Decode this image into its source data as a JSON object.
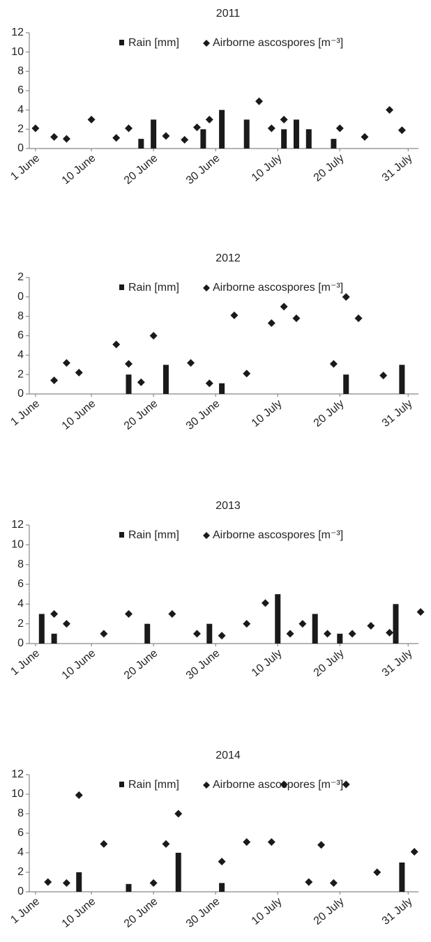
{
  "chart_data": [
    {
      "type": "combo",
      "title": "2011",
      "xlim": [
        0,
        64
      ],
      "ylim": [
        0,
        12
      ],
      "yticks": [
        0,
        2,
        4,
        6,
        8,
        10,
        12
      ],
      "xticks": [
        {
          "value": 1,
          "label": "1 June"
        },
        {
          "value": 10,
          "label": "10 June"
        },
        {
          "value": 20,
          "label": "20 June"
        },
        {
          "value": 30,
          "label": "30 June"
        },
        {
          "value": 40,
          "label": "10 July"
        },
        {
          "value": 50,
          "label": "20 July"
        },
        {
          "value": 61,
          "label": "31 July"
        }
      ],
      "series": [
        {
          "name": "Rain [mm]",
          "type": "bar",
          "color": "#1a1a1a",
          "x": [
            18,
            20,
            28,
            31,
            35,
            41,
            43,
            45,
            49
          ],
          "values": [
            1,
            3,
            2,
            4,
            3,
            2,
            3,
            2,
            1
          ]
        },
        {
          "name": "Airborne ascospores [m⁻³]",
          "type": "scatter",
          "marker": "diamond",
          "color": "#1a1a1a",
          "x": [
            1,
            4,
            6,
            10,
            14,
            16,
            22,
            25,
            27,
            29,
            37,
            39,
            41,
            50,
            54,
            58,
            60
          ],
          "values": [
            2.1,
            1.2,
            1.0,
            3.0,
            1.1,
            2.1,
            1.3,
            0.9,
            2.2,
            3.0,
            4.9,
            2.1,
            3.0,
            2.1,
            1.2,
            4.0,
            1.9
          ]
        }
      ]
    },
    {
      "type": "combo",
      "title": "2012",
      "xlim": [
        0,
        64
      ],
      "ylim": [
        0,
        12
      ],
      "yticks": [
        0,
        2,
        4,
        6,
        8,
        {
          "value": 10,
          "label": "0"
        },
        {
          "value": 12,
          "label": "2"
        }
      ],
      "xticks": [
        {
          "value": 1,
          "label": "1 June"
        },
        {
          "value": 10,
          "label": "10 June"
        },
        {
          "value": 20,
          "label": "20 June"
        },
        {
          "value": 30,
          "label": "30 June"
        },
        {
          "value": 40,
          "label": "10 July"
        },
        {
          "value": 50,
          "label": "20 July"
        },
        {
          "value": 61,
          "label": "31 July"
        }
      ],
      "series": [
        {
          "name": "Rain [mm]",
          "type": "bar",
          "color": "#1a1a1a",
          "x": [
            16,
            22,
            31,
            51,
            60
          ],
          "values": [
            2,
            3,
            1.1,
            2,
            3
          ]
        },
        {
          "name": "Airborne ascospores [m⁻³]",
          "type": "scatter",
          "marker": "diamond",
          "color": "#1a1a1a",
          "x": [
            4,
            6,
            8,
            14,
            16,
            18,
            20,
            26,
            29,
            33,
            35,
            39,
            41,
            43,
            49,
            51,
            53,
            57
          ],
          "values": [
            1.4,
            3.2,
            2.2,
            5.1,
            3.1,
            1.2,
            6.0,
            3.2,
            1.1,
            8.1,
            2.1,
            7.3,
            9.0,
            7.8,
            3.1,
            10.0,
            7.8,
            1.9
          ]
        }
      ]
    },
    {
      "type": "combo",
      "title": "2013",
      "xlim": [
        0,
        64
      ],
      "ylim": [
        0,
        12
      ],
      "yticks": [
        0,
        2,
        4,
        6,
        8,
        10,
        12
      ],
      "xticks": [
        {
          "value": 1,
          "label": "1 June"
        },
        {
          "value": 10,
          "label": "10 June"
        },
        {
          "value": 20,
          "label": "20 June"
        },
        {
          "value": 30,
          "label": "30 June"
        },
        {
          "value": 40,
          "label": "10 July"
        },
        {
          "value": 50,
          "label": "20 July"
        },
        {
          "value": 61,
          "label": "31 July"
        }
      ],
      "series": [
        {
          "name": "Rain [mm]",
          "type": "bar",
          "color": "#1a1a1a",
          "x": [
            2,
            4,
            19,
            29,
            40,
            46,
            50,
            59
          ],
          "values": [
            3,
            1,
            2,
            2,
            5,
            3,
            1,
            4
          ]
        },
        {
          "name": "Airborne ascospores [m⁻³]",
          "type": "scatter",
          "marker": "diamond",
          "color": "#1a1a1a",
          "x": [
            4,
            6,
            12,
            16,
            23,
            27,
            31,
            35,
            38,
            42,
            44,
            48,
            52,
            55,
            58,
            63
          ],
          "values": [
            3.0,
            2.0,
            1.0,
            3.0,
            3.0,
            1.0,
            0.8,
            2.0,
            4.1,
            1.0,
            2.0,
            1.0,
            1.0,
            1.8,
            1.1,
            3.2
          ]
        }
      ]
    },
    {
      "type": "combo",
      "title": "2014",
      "xlim": [
        0,
        64
      ],
      "ylim": [
        0,
        12
      ],
      "yticks": [
        0,
        2,
        4,
        6,
        8,
        10,
        12
      ],
      "xticks": [
        {
          "value": 1,
          "label": "1 June"
        },
        {
          "value": 10,
          "label": "10 June"
        },
        {
          "value": 20,
          "label": "20 June"
        },
        {
          "value": 30,
          "label": "30 June"
        },
        {
          "value": 40,
          "label": "10 July"
        },
        {
          "value": 50,
          "label": "20 July"
        },
        {
          "value": 61,
          "label": "31 July"
        }
      ],
      "series": [
        {
          "name": "Rain [mm]",
          "type": "bar",
          "color": "#1a1a1a",
          "x": [
            8,
            16,
            24,
            31,
            60
          ],
          "values": [
            2,
            0.8,
            4,
            0.9,
            3
          ]
        },
        {
          "name": "Airborne ascospores [m⁻³]",
          "type": "scatter",
          "marker": "diamond",
          "color": "#1a1a1a",
          "x": [
            3,
            6,
            8,
            12,
            20,
            22,
            24,
            31,
            35,
            39,
            41,
            45,
            47,
            49,
            51,
            56,
            62
          ],
          "values": [
            1.0,
            0.9,
            9.9,
            4.9,
            0.9,
            4.9,
            8.0,
            3.1,
            5.1,
            5.1,
            11.0,
            1.0,
            4.8,
            0.9,
            11.0,
            2.0,
            4.1
          ]
        }
      ]
    }
  ]
}
